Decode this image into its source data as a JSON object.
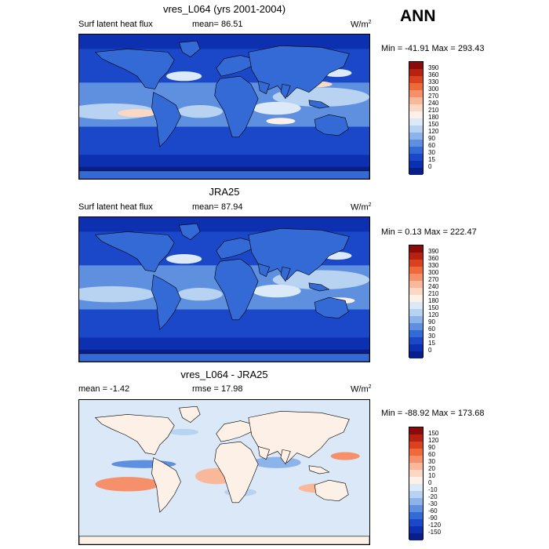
{
  "season": "ANN",
  "panels": [
    {
      "title": "vres_L064 (yrs 2001-2004)",
      "left_label": "Surf latent heat flux",
      "center_label": "mean=  86.51",
      "units": "W/m",
      "units_sup": "2",
      "minmax": "Min = -41.91 Max = 293.43",
      "levels": [
        "390",
        "360",
        "330",
        "300",
        "270",
        "240",
        "210",
        "180",
        "150",
        "120",
        "90",
        "60",
        "30",
        "15",
        "0"
      ],
      "colors": [
        "#8b0a0a",
        "#b52212",
        "#d8421e",
        "#ef6a3a",
        "#f6906a",
        "#f9b89a",
        "#fbd8c4",
        "#fdf0e6",
        "#dce9f8",
        "#b8d2f2",
        "#8db4ea",
        "#5f90e0",
        "#346ad6",
        "#1a48c8",
        "#0c30b0",
        "#081e8a"
      ],
      "map_style": "model"
    },
    {
      "title": "JRA25",
      "left_label": "Surf latent heat flux",
      "center_label": "mean=  87.94",
      "units": "W/m",
      "units_sup": "2",
      "minmax": "Min =   0.13 Max = 222.47",
      "levels": [
        "390",
        "360",
        "330",
        "300",
        "270",
        "240",
        "210",
        "180",
        "150",
        "120",
        "90",
        "60",
        "30",
        "15",
        "0"
      ],
      "colors": [
        "#8b0a0a",
        "#b52212",
        "#d8421e",
        "#ef6a3a",
        "#f6906a",
        "#f9b89a",
        "#fbd8c4",
        "#fdf0e6",
        "#dce9f8",
        "#b8d2f2",
        "#8db4ea",
        "#5f90e0",
        "#346ad6",
        "#1a48c8",
        "#0c30b0",
        "#081e8a"
      ],
      "map_style": "obs"
    },
    {
      "title": "vres_L064 - JRA25",
      "left_label": "mean =  -1.42",
      "center_label": "rmse =  17.98",
      "units": "W/m",
      "units_sup": "2",
      "minmax": "Min = -88.92 Max = 173.68",
      "levels": [
        "150",
        "120",
        "90",
        "60",
        "30",
        "20",
        "10",
        "0",
        "-10",
        "-20",
        "-30",
        "-60",
        "-90",
        "-120",
        "-150"
      ],
      "colors": [
        "#8b0a0a",
        "#b52212",
        "#d8421e",
        "#ef6a3a",
        "#f6906a",
        "#f9b89a",
        "#fbd8c4",
        "#fdf0e6",
        "#dce9f8",
        "#b8d2f2",
        "#8db4ea",
        "#5f90e0",
        "#346ad6",
        "#1a48c8",
        "#0c30b0",
        "#081e8a"
      ],
      "map_style": "diff"
    }
  ]
}
